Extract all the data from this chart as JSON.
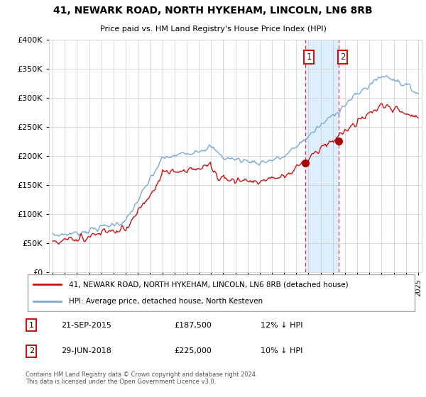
{
  "title": "41, NEWARK ROAD, NORTH HYKEHAM, LINCOLN, LN6 8RB",
  "subtitle": "Price paid vs. HM Land Registry's House Price Index (HPI)",
  "legend_line1": "41, NEWARK ROAD, NORTH HYKEHAM, LINCOLN, LN6 8RB (detached house)",
  "legend_line2": "HPI: Average price, detached house, North Kesteven",
  "annotation1_label": "1",
  "annotation1_date": "21-SEP-2015",
  "annotation1_price": "£187,500",
  "annotation1_hpi": "12% ↓ HPI",
  "annotation2_label": "2",
  "annotation2_date": "29-JUN-2018",
  "annotation2_price": "£225,000",
  "annotation2_hpi": "10% ↓ HPI",
  "footer": "Contains HM Land Registry data © Crown copyright and database right 2024.\nThis data is licensed under the Open Government Licence v3.0.",
  "sale1_year": 2015.72,
  "sale1_price": 187500,
  "sale2_year": 2018.49,
  "sale2_price": 225000,
  "hpi_color": "#7aaad4",
  "price_color": "#cc1111",
  "highlight_color": "#ddeeff",
  "ylim_min": 0,
  "ylim_max": 400000,
  "background_color": "#ffffff"
}
